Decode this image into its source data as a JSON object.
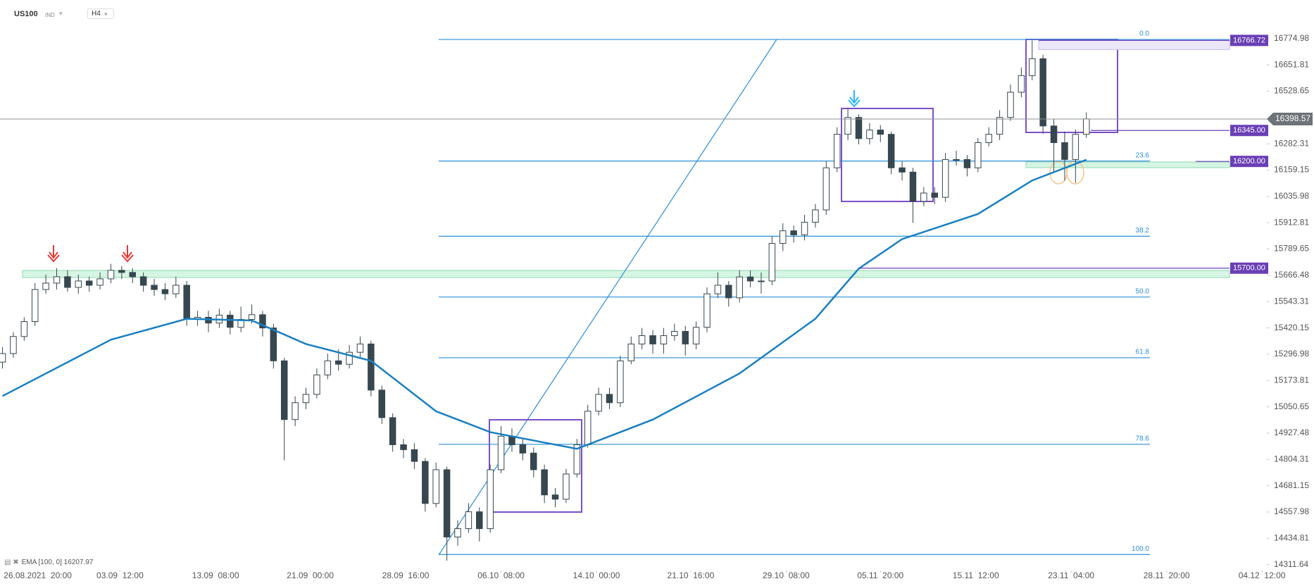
{
  "toolbar": {
    "symbol": "US100",
    "market": "IND",
    "timeframe": "H4"
  },
  "indicator": {
    "label": "EMA [100, 0]",
    "value": 16207.97
  },
  "chart_data": {
    "type": "candlestick",
    "xlim": [
      -0.23,
      116.65
    ],
    "ylim": [
      14284,
      16956
    ],
    "xticks": [
      {
        "value": 3.25,
        "label": "26.08.2021  20:00"
      },
      {
        "value": 10.84,
        "label": "03.09  12:00"
      },
      {
        "value": 19.66,
        "label": "13.09  08:00"
      },
      {
        "value": 28.4,
        "label": "21.09  00:00"
      },
      {
        "value": 37.2,
        "label": "28.09  16:00"
      },
      {
        "value": 46.0,
        "label": "06.10  08:00"
      },
      {
        "value": 54.8,
        "label": "14.10  00:00"
      },
      {
        "value": 63.5,
        "label": "21.10  16:00"
      },
      {
        "value": 72.3,
        "label": "29.10  08:00"
      },
      {
        "value": 81.0,
        "label": "05.11  20:00"
      },
      {
        "value": 89.8,
        "label": "15.11  12:00"
      },
      {
        "value": 98.6,
        "label": "23.11  04:00"
      },
      {
        "value": 107.4,
        "label": "28.11  20:00"
      },
      {
        "value": 116.2,
        "label": "04.12  12:00"
      }
    ],
    "yticks": [
      16774.98,
      16651.81,
      16528.65,
      16282.31,
      16159.15,
      16035.98,
      15912.81,
      15789.65,
      {
        "value": 15666.48,
        "label": "15666.48"
      },
      15543.31,
      15420.15,
      15296.98,
      15173.81,
      15050.65,
      14927.48,
      14804.31,
      14681.15,
      14557.98,
      14434.81,
      14311.64
    ],
    "open": [
      15260,
      15300,
      15380,
      15450,
      15600,
      15630,
      15660,
      15610,
      15640,
      15620,
      15650,
      15690,
      15680,
      15660,
      15620,
      15600,
      15580,
      15620,
      15463,
      15470,
      15443,
      15480,
      15423,
      15460,
      15482,
      15420,
      15266,
      14991,
      15070,
      15109,
      15200,
      15266,
      15250,
      15306,
      15345,
      15129,
      15000,
      14873,
      14850,
      14795,
      14598,
      14756,
      14441,
      14480,
      14559,
      14480,
      14756,
      14913,
      14873,
      14834,
      14756,
      14638,
      14618,
      14736,
      14873,
      15030,
      15109,
      15070,
      15266,
      15345,
      15384,
      15345,
      15384,
      15404,
      15345,
      15423,
      15580,
      15620,
      15561,
      15659,
      15640,
      15640,
      15816,
      15875,
      15856,
      15915,
      15973,
      16170,
      16327,
      16406,
      16307,
      16347,
      16327,
      16170,
      16150,
      16013,
      16052,
      16032,
      16209,
      16209,
      16170,
      16288,
      16327,
      16406,
      16524,
      16602,
      16681,
      16366,
      16288,
      16209,
      16327
    ],
    "high": [
      15330,
      15400,
      15470,
      15630,
      15670,
      15700,
      15690,
      15670,
      15660,
      15680,
      15720,
      15710,
      15700,
      15680,
      15650,
      15630,
      15660,
      15640,
      15500,
      15500,
      15510,
      15500,
      15520,
      15530,
      15500,
      15440,
      15280,
      15100,
      15140,
      15230,
      15300,
      15320,
      15340,
      15380,
      15360,
      15150,
      15020,
      14900,
      14880,
      14810,
      14790,
      14770,
      14520,
      14600,
      14580,
      14780,
      14960,
      14950,
      14900,
      14860,
      14780,
      14670,
      14760,
      14900,
      15060,
      15140,
      15140,
      15290,
      15380,
      15420,
      15410,
      15420,
      15440,
      15430,
      15450,
      15610,
      15680,
      15640,
      15690,
      15690,
      15680,
      15850,
      15910,
      15900,
      15950,
      16000,
      16200,
      16360,
      16450,
      16420,
      16380,
      16370,
      16340,
      16200,
      16170,
      16080,
      16080,
      16240,
      16250,
      16230,
      16310,
      16360,
      16440,
      16560,
      16640,
      16767,
      16700,
      16400,
      16340,
      16350,
      16430
    ],
    "low": [
      15230,
      15280,
      15360,
      15430,
      15580,
      15600,
      15590,
      15580,
      15590,
      15600,
      15630,
      15650,
      15630,
      15590,
      15570,
      15550,
      15560,
      15430,
      15430,
      15400,
      15420,
      15390,
      15400,
      15440,
      15380,
      15230,
      14800,
      14960,
      15040,
      15090,
      15180,
      15220,
      15230,
      15280,
      15100,
      14970,
      14840,
      14810,
      14760,
      14560,
      14580,
      14330,
      14400,
      14460,
      14420,
      14460,
      14740,
      14840,
      14800,
      14720,
      14600,
      14580,
      14600,
      14720,
      14860,
      15010,
      15040,
      15050,
      15250,
      15320,
      15300,
      15300,
      15360,
      15290,
      15320,
      15400,
      15560,
      15520,
      15540,
      15610,
      15580,
      15620,
      15780,
      15820,
      15830,
      15890,
      15950,
      16150,
      16300,
      16280,
      16280,
      16290,
      16140,
      16110,
      15912,
      15990,
      16000,
      16010,
      16180,
      16130,
      16150,
      16270,
      16300,
      16390,
      16500,
      16580,
      16330,
      16150,
      16110,
      16100,
      16310
    ],
    "close": [
      15300,
      15380,
      15450,
      15600,
      15630,
      15660,
      15610,
      15640,
      15620,
      15650,
      15690,
      15680,
      15660,
      15620,
      15600,
      15580,
      15620,
      15463,
      15470,
      15443,
      15480,
      15423,
      15460,
      15482,
      15420,
      15266,
      14991,
      15070,
      15109,
      15200,
      15266,
      15250,
      15306,
      15345,
      15129,
      15000,
      14873,
      14850,
      14795,
      14598,
      14756,
      14441,
      14480,
      14559,
      14480,
      14756,
      14913,
      14873,
      14834,
      14756,
      14638,
      14618,
      14736,
      14873,
      15030,
      15109,
      15070,
      15266,
      15345,
      15384,
      15345,
      15384,
      15404,
      15345,
      15423,
      15580,
      15620,
      15561,
      15659,
      15640,
      15640,
      15816,
      15875,
      15856,
      15915,
      15973,
      16170,
      16327,
      16406,
      16307,
      16347,
      16327,
      16170,
      16150,
      16013,
      16052,
      16032,
      16209,
      16209,
      16170,
      16288,
      16327,
      16406,
      16524,
      16602,
      16681,
      16366,
      16288,
      16209,
      16327,
      16399
    ],
    "ema": {
      "color": "#1a7fc1",
      "x": [
        0,
        10,
        17,
        23,
        28,
        34,
        40,
        45,
        53,
        60,
        68,
        75,
        79,
        83,
        90,
        95,
        100
      ],
      "values": [
        15101,
        15365,
        15463,
        15455,
        15345,
        15266,
        15030,
        14932,
        14854,
        14991,
        15207,
        15463,
        15698,
        15836,
        15954,
        16111,
        16207.97
      ]
    },
    "fib": {
      "high": 16771,
      "low": 14359,
      "color": "#2b8fd9",
      "levels": [
        {
          "value": 0,
          "label": "0.0"
        },
        23.6,
        38.2,
        {
          "value": 50,
          "label": "50.0"
        },
        61.8,
        78.6,
        {
          "value": 100,
          "label": "100.0"
        }
      ]
    },
    "levels": [
      16766.72,
      {
        "value": 16345,
        "label": "16345.00"
      },
      {
        "value": 16200,
        "label": "16200.00"
      },
      {
        "value": 15700,
        "label": "15700.00"
      }
    ],
    "levels_color": "#6a3fb5",
    "current_price": 16398.57
  }
}
